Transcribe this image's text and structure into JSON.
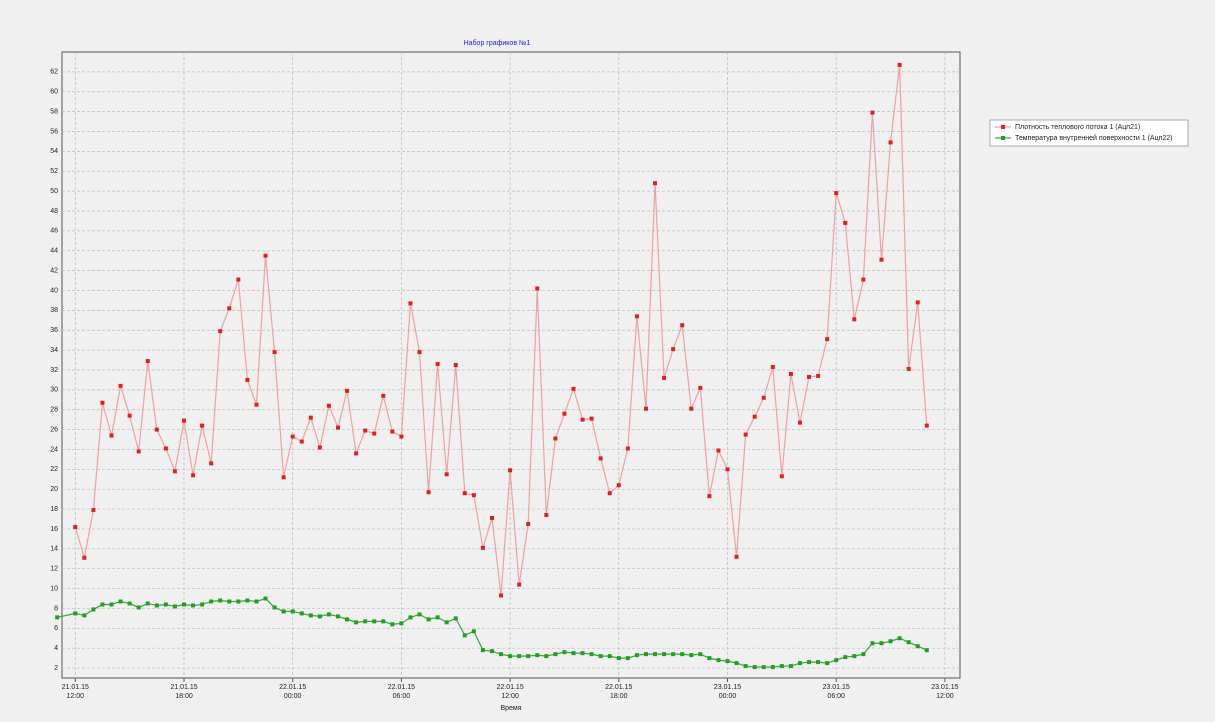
{
  "chart_data": {
    "type": "line",
    "title": "Набор графиков №1",
    "x_label": "Время",
    "xlim": [
      "2015-01-21T11:16",
      "2015-01-23T12:50"
    ],
    "xticks": [
      {
        "value": "2015-01-21T12:00",
        "label": "21.01.15\n12:00"
      },
      {
        "value": "2015-01-21T18:00",
        "label": "21.01.15\n18:00"
      },
      {
        "value": "2015-01-22T00:00",
        "label": "22.01.15\n00:00"
      },
      {
        "value": "2015-01-22T06:00",
        "label": "22.01.15\n06:00"
      },
      {
        "value": "2015-01-22T12:00",
        "label": "22.01.15\n12:00"
      },
      {
        "value": "2015-01-22T18:00",
        "label": "22.01.15\n18:00"
      },
      {
        "value": "2015-01-23T00:00",
        "label": "23.01.15\n00:00"
      },
      {
        "value": "2015-01-23T06:00",
        "label": "23.01.15\n06:00"
      },
      {
        "value": "2015-01-23T12:00",
        "label": "23.01.15\n12:00"
      }
    ],
    "ylim": [
      1,
      64
    ],
    "yticks": [
      2,
      4,
      6,
      8,
      10,
      12,
      14,
      16,
      18,
      20,
      22,
      24,
      26,
      28,
      30,
      32,
      34,
      36,
      38,
      40,
      42,
      44,
      46,
      48,
      50,
      52,
      54,
      56,
      58,
      60,
      62
    ],
    "grid": true,
    "legend": "upper right",
    "series": [
      {
        "name": "Плотность теплового потока 1 (Ацп21)",
        "color": "#e02020",
        "line_color": "#f0a0a0",
        "x": [
          "2015-01-21T12:00",
          "2015-01-21T12:30",
          "2015-01-21T13:00",
          "2015-01-21T13:30",
          "2015-01-21T14:00",
          "2015-01-21T14:30",
          "2015-01-21T15:00",
          "2015-01-21T15:30",
          "2015-01-21T16:00",
          "2015-01-21T16:30",
          "2015-01-21T17:00",
          "2015-01-21T17:30",
          "2015-01-21T18:00",
          "2015-01-21T18:30",
          "2015-01-21T19:00",
          "2015-01-21T19:30",
          "2015-01-21T20:00",
          "2015-01-21T20:30",
          "2015-01-21T21:00",
          "2015-01-21T21:30",
          "2015-01-21T22:00",
          "2015-01-21T22:30",
          "2015-01-21T23:00",
          "2015-01-21T23:30",
          "2015-01-22T00:00",
          "2015-01-22T00:30",
          "2015-01-22T01:00",
          "2015-01-22T01:30",
          "2015-01-22T02:00",
          "2015-01-22T02:30",
          "2015-01-22T03:00",
          "2015-01-22T03:30",
          "2015-01-22T04:00",
          "2015-01-22T04:30",
          "2015-01-22T05:00",
          "2015-01-22T05:30",
          "2015-01-22T06:00",
          "2015-01-22T06:30",
          "2015-01-22T07:00",
          "2015-01-22T07:30",
          "2015-01-22T08:00",
          "2015-01-22T08:30",
          "2015-01-22T09:00",
          "2015-01-22T09:30",
          "2015-01-22T10:00",
          "2015-01-22T10:30",
          "2015-01-22T11:00",
          "2015-01-22T11:30",
          "2015-01-22T12:00",
          "2015-01-22T12:30",
          "2015-01-22T13:00",
          "2015-01-22T13:30",
          "2015-01-22T14:00",
          "2015-01-22T14:30",
          "2015-01-22T15:00",
          "2015-01-22T15:30",
          "2015-01-22T16:00",
          "2015-01-22T16:30",
          "2015-01-22T17:00",
          "2015-01-22T17:30",
          "2015-01-22T18:00",
          "2015-01-22T18:30",
          "2015-01-22T19:00",
          "2015-01-22T19:30",
          "2015-01-22T20:00",
          "2015-01-22T20:30",
          "2015-01-22T21:00",
          "2015-01-22T21:30",
          "2015-01-22T22:00",
          "2015-01-22T22:30",
          "2015-01-22T23:00",
          "2015-01-22T23:30",
          "2015-01-23T00:00",
          "2015-01-23T00:30",
          "2015-01-23T01:00",
          "2015-01-23T01:30",
          "2015-01-23T02:00",
          "2015-01-23T02:30",
          "2015-01-23T03:00",
          "2015-01-23T03:30",
          "2015-01-23T04:00",
          "2015-01-23T04:30",
          "2015-01-23T05:00",
          "2015-01-23T05:30",
          "2015-01-23T06:00",
          "2015-01-23T06:30",
          "2015-01-23T07:00",
          "2015-01-23T07:30",
          "2015-01-23T08:00",
          "2015-01-23T08:30",
          "2015-01-23T09:00",
          "2015-01-23T09:30",
          "2015-01-23T10:00",
          "2015-01-23T10:30",
          "2015-01-23T11:00"
        ],
        "values": [
          16.2,
          13.1,
          17.9,
          28.7,
          25.4,
          30.4,
          27.4,
          23.8,
          32.9,
          26.0,
          24.1,
          21.8,
          26.9,
          21.4,
          26.4,
          22.6,
          35.9,
          38.2,
          41.1,
          31.0,
          28.5,
          43.5,
          33.8,
          21.2,
          25.3,
          24.8,
          27.2,
          24.2,
          28.4,
          26.2,
          29.9,
          23.6,
          25.9,
          25.6,
          29.4,
          25.8,
          25.3,
          38.7,
          33.8,
          19.7,
          32.6,
          21.5,
          32.5,
          19.6,
          19.4,
          14.1,
          17.1,
          9.3,
          21.9,
          10.4,
          16.5,
          40.2,
          17.4,
          25.1,
          27.6,
          30.1,
          27.0,
          27.1,
          23.1,
          19.6,
          20.4,
          24.1,
          37.4,
          28.1,
          50.8,
          31.2,
          34.1,
          36.5,
          28.1,
          30.2,
          19.3,
          23.9,
          22.0,
          13.2,
          25.5,
          27.3,
          29.2,
          32.3,
          21.3,
          31.6,
          26.7,
          31.3,
          31.4,
          35.1,
          49.8,
          46.8,
          37.1,
          41.1,
          57.9,
          43.1,
          54.9,
          62.7,
          32.1,
          38.8,
          26.4
        ]
      },
      {
        "name": "Температура внутренней поверхности 1 (Ацп22)",
        "color": "#20a020",
        "line_color": "#40a040",
        "x": [
          "2015-01-21T11:00",
          "2015-01-21T12:00",
          "2015-01-21T12:30",
          "2015-01-21T13:00",
          "2015-01-21T13:30",
          "2015-01-21T14:00",
          "2015-01-21T14:30",
          "2015-01-21T15:00",
          "2015-01-21T15:30",
          "2015-01-21T16:00",
          "2015-01-21T16:30",
          "2015-01-21T17:00",
          "2015-01-21T17:30",
          "2015-01-21T18:00",
          "2015-01-21T18:30",
          "2015-01-21T19:00",
          "2015-01-21T19:30",
          "2015-01-21T20:00",
          "2015-01-21T20:30",
          "2015-01-21T21:00",
          "2015-01-21T21:30",
          "2015-01-21T22:00",
          "2015-01-21T22:30",
          "2015-01-21T23:00",
          "2015-01-21T23:30",
          "2015-01-22T00:00",
          "2015-01-22T00:30",
          "2015-01-22T01:00",
          "2015-01-22T01:30",
          "2015-01-22T02:00",
          "2015-01-22T02:30",
          "2015-01-22T03:00",
          "2015-01-22T03:30",
          "2015-01-22T04:00",
          "2015-01-22T04:30",
          "2015-01-22T05:00",
          "2015-01-22T05:30",
          "2015-01-22T06:00",
          "2015-01-22T06:30",
          "2015-01-22T07:00",
          "2015-01-22T07:30",
          "2015-01-22T08:00",
          "2015-01-22T08:30",
          "2015-01-22T09:00",
          "2015-01-22T09:30",
          "2015-01-22T10:00",
          "2015-01-22T10:30",
          "2015-01-22T11:00",
          "2015-01-22T11:30",
          "2015-01-22T12:00",
          "2015-01-22T12:30",
          "2015-01-22T13:00",
          "2015-01-22T13:30",
          "2015-01-22T14:00",
          "2015-01-22T14:30",
          "2015-01-22T15:00",
          "2015-01-22T15:30",
          "2015-01-22T16:00",
          "2015-01-22T16:30",
          "2015-01-22T17:00",
          "2015-01-22T17:30",
          "2015-01-22T18:00",
          "2015-01-22T18:30",
          "2015-01-22T19:00",
          "2015-01-22T19:30",
          "2015-01-22T20:00",
          "2015-01-22T20:30",
          "2015-01-22T21:00",
          "2015-01-22T21:30",
          "2015-01-22T22:00",
          "2015-01-22T22:30",
          "2015-01-22T23:00",
          "2015-01-22T23:30",
          "2015-01-23T00:00",
          "2015-01-23T00:30",
          "2015-01-23T01:00",
          "2015-01-23T01:30",
          "2015-01-23T02:00",
          "2015-01-23T02:30",
          "2015-01-23T03:00",
          "2015-01-23T03:30",
          "2015-01-23T04:00",
          "2015-01-23T04:30",
          "2015-01-23T05:00",
          "2015-01-23T05:30",
          "2015-01-23T06:00",
          "2015-01-23T06:30",
          "2015-01-23T07:00",
          "2015-01-23T07:30",
          "2015-01-23T08:00",
          "2015-01-23T08:30",
          "2015-01-23T09:00",
          "2015-01-23T09:30",
          "2015-01-23T10:00",
          "2015-01-23T10:30",
          "2015-01-23T11:00"
        ],
        "values": [
          7.1,
          7.5,
          7.3,
          7.9,
          8.4,
          8.4,
          8.7,
          8.5,
          8.1,
          8.5,
          8.3,
          8.4,
          8.2,
          8.4,
          8.3,
          8.4,
          8.7,
          8.8,
          8.7,
          8.7,
          8.8,
          8.7,
          9.0,
          8.1,
          7.7,
          7.7,
          7.5,
          7.3,
          7.2,
          7.4,
          7.2,
          6.9,
          6.6,
          6.7,
          6.7,
          6.7,
          6.4,
          6.5,
          7.1,
          7.4,
          6.9,
          7.1,
          6.6,
          7.0,
          5.3,
          5.7,
          3.8,
          3.7,
          3.4,
          3.2,
          3.2,
          3.2,
          3.3,
          3.2,
          3.4,
          3.6,
          3.5,
          3.5,
          3.4,
          3.2,
          3.2,
          3.0,
          3.0,
          3.3,
          3.4,
          3.4,
          3.4,
          3.4,
          3.4,
          3.3,
          3.4,
          3.0,
          2.8,
          2.7,
          2.5,
          2.2,
          2.1,
          2.1,
          2.1,
          2.2,
          2.2,
          2.5,
          2.6,
          2.6,
          2.5,
          2.8,
          3.1,
          3.2,
          3.4,
          4.5,
          4.5,
          4.7,
          5.0,
          4.6,
          4.2,
          3.8
        ]
      }
    ]
  }
}
